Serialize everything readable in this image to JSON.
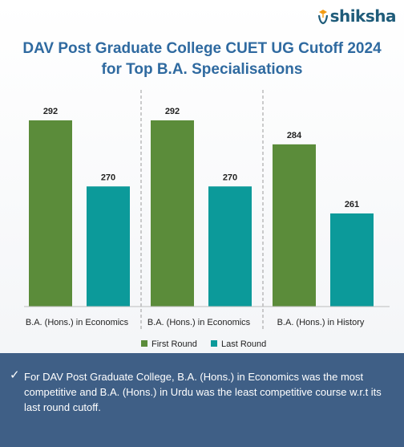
{
  "brand": {
    "name": "shiksha"
  },
  "title_lines": [
    "DAV Post Graduate College CUET UG Cutoff 2024",
    "for Top B.A. Specialisations"
  ],
  "chart_data": {
    "type": "bar",
    "categories": [
      "B.A. (Hons.) in Economics",
      "B.A. (Hons.) in Economics",
      "B.A. (Hons.) in History"
    ],
    "series": [
      {
        "name": "First Round",
        "values": [
          292,
          292,
          284
        ],
        "color": "#5b8c3a"
      },
      {
        "name": "Last Round",
        "values": [
          270,
          270,
          261
        ],
        "color": "#0c9a9a"
      }
    ],
    "ylim": [
      230,
      300
    ],
    "grid": false,
    "legend_position": "bottom"
  },
  "footer": {
    "icon": "check-icon",
    "text": "For DAV Post Graduate College, B.A. (Hons.) in Economics was the most competitive and B.A. (Hons.) in Urdu was the least competitive course w.r.t its last round cutoff."
  }
}
